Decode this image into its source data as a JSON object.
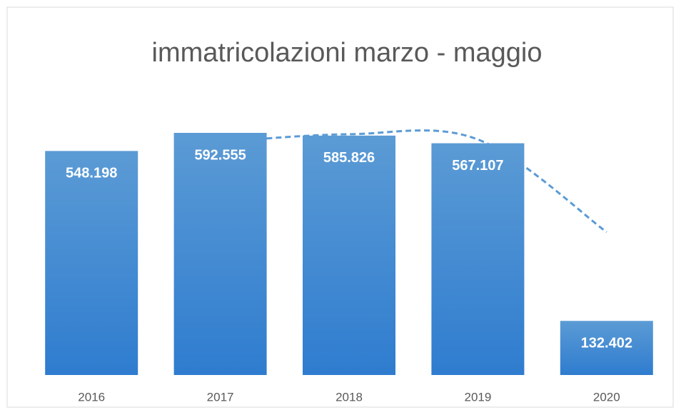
{
  "chart_data": {
    "type": "bar",
    "title": "immatricolazioni marzo - maggio",
    "categories": [
      "2016",
      "2017",
      "2018",
      "2019",
      "2020"
    ],
    "values": [
      548198,
      592555,
      585826,
      567107,
      132402
    ],
    "value_labels": [
      "548.198",
      "592.555",
      "585.826",
      "567.107",
      "132.402"
    ],
    "color": "#4a8fd8"
  }
}
